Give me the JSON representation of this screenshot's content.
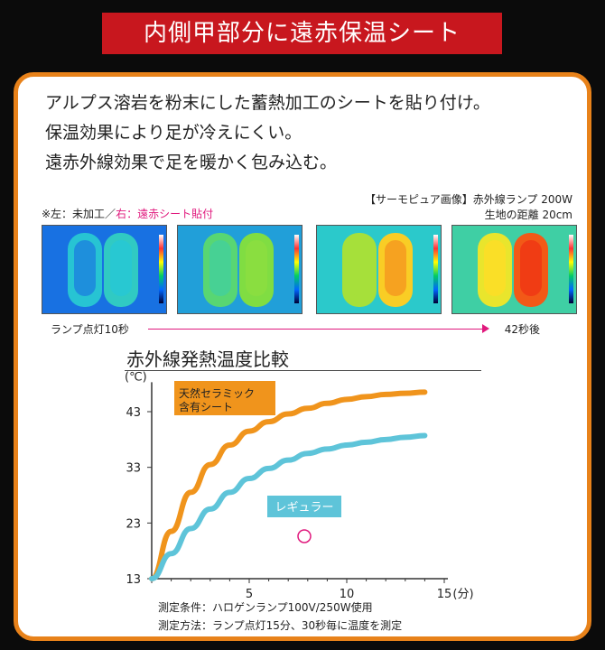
{
  "banner": {
    "title": "内側甲部分に遠赤保温シート"
  },
  "intro": [
    "アルプス溶岩を粉末にした蓄熱加工のシートを貼り付け。",
    "保温効果により足が冷えにくい。",
    "遠赤外線効果で足を暖かく包み込む。"
  ],
  "thermo_note": {
    "prefix": "※左：未加工／",
    "highlight": "右：遠赤シート貼付",
    "line1": "【サーモピュア画像】赤外線ランプ 200W",
    "line2": "生地の距離 20cm"
  },
  "thermo_images": [
    {
      "heat_level": 0.15
    },
    {
      "heat_level": 0.45
    },
    {
      "heat_level": 0.75
    },
    {
      "heat_level": 0.95
    }
  ],
  "timeline": {
    "start": "ランプ点灯10秒",
    "end": "42秒後"
  },
  "chart_title": "赤外線発熱温度比較",
  "colors": {
    "banner": "#c8171e",
    "frame": "#e8821a",
    "orange": "#f0941c",
    "blue": "#5ec4d9",
    "accent": "#e0197d"
  },
  "chart_data": {
    "type": "line",
    "title": "赤外線発熱温度比較",
    "xlabel": "(分)",
    "ylabel": "(℃)",
    "xlim": [
      0,
      15
    ],
    "ylim": [
      13,
      47
    ],
    "x_ticks": [
      "0",
      "5",
      "10",
      "15"
    ],
    "y_ticks": [
      "13",
      "23",
      "33",
      "43"
    ],
    "series": [
      {
        "name": "天然セラミック含有シート",
        "color": "#f0941c",
        "x": [
          0,
          1,
          2,
          3,
          4,
          5,
          6,
          7,
          8,
          9,
          10,
          11,
          12,
          13,
          14
        ],
        "values": [
          13,
          21.5,
          28.5,
          33.5,
          37,
          39.5,
          41.2,
          42.6,
          43.6,
          44.5,
          45.2,
          45.7,
          46.1,
          46.3,
          46.5
        ]
      },
      {
        "name": "レギュラー",
        "color": "#5ec4d9",
        "x": [
          0,
          1,
          2,
          3,
          4,
          5,
          6,
          7,
          8,
          9,
          10,
          11,
          12,
          13,
          14
        ],
        "values": [
          13,
          17.5,
          22,
          25.5,
          28.5,
          31,
          32.8,
          34.3,
          35.5,
          36.3,
          37,
          37.5,
          38,
          38.4,
          38.7
        ]
      }
    ],
    "legend_labels": [
      {
        "line1": "天然セラミック",
        "line2": "含有シート"
      },
      {
        "line1": "レギュラー"
      }
    ],
    "grid": false
  },
  "footnotes": [
    "測定条件：ハロゲンランプ100V/250W使用",
    "測定方法：ランプ点灯15分、30秒毎に温度を測定"
  ]
}
